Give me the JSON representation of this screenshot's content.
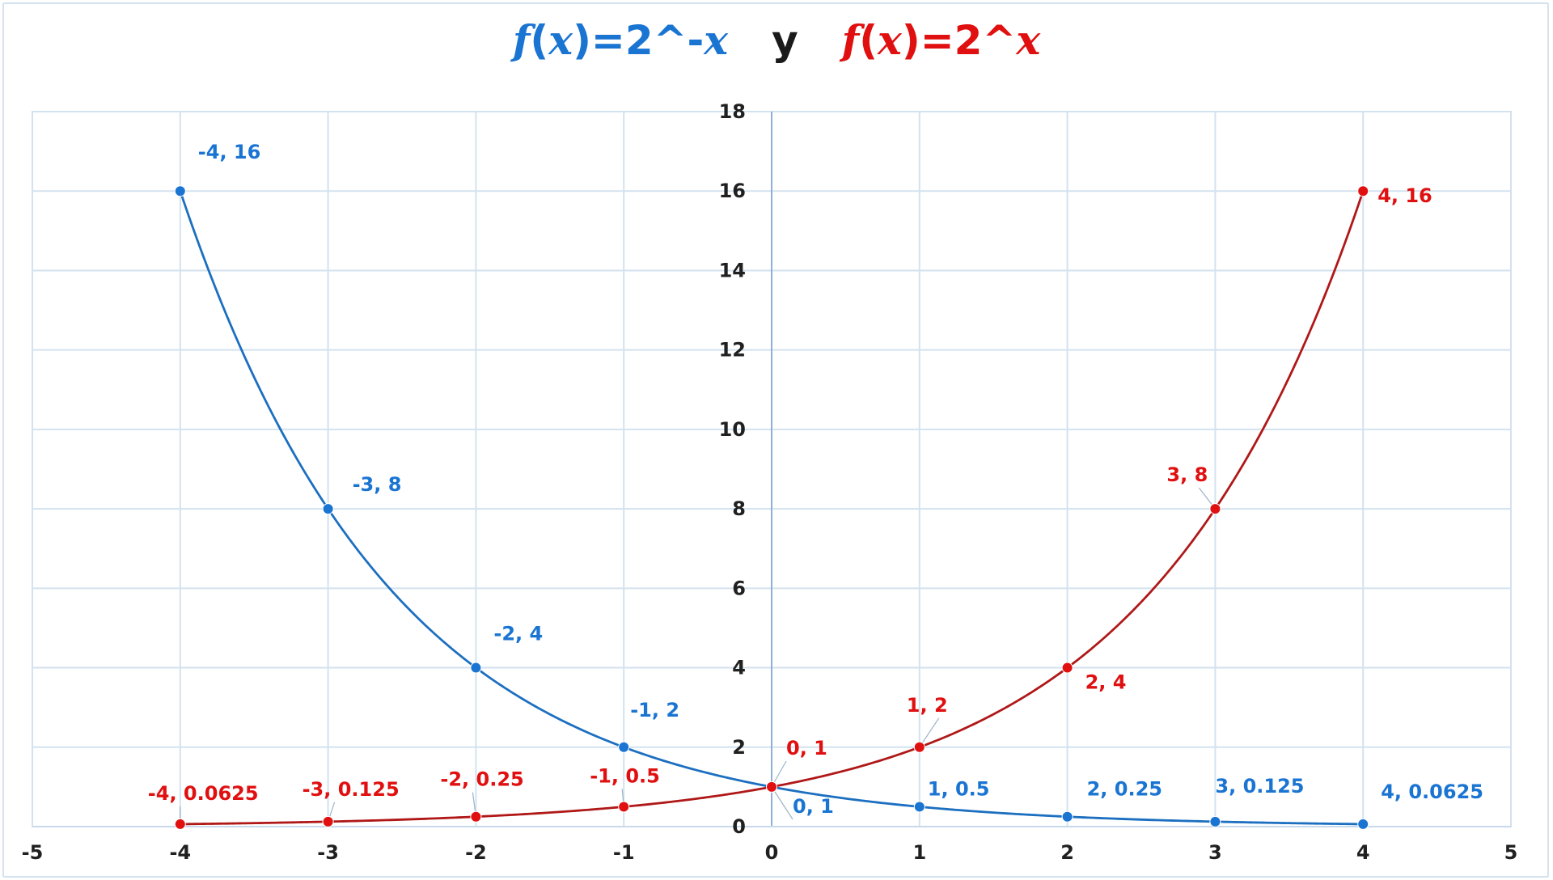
{
  "title": {
    "left": "f(x)=2^-x",
    "connector": "y",
    "right": "f(x)=2^x",
    "left_color": "#1a74d2",
    "right_color": "#e01010"
  },
  "chart_data": {
    "type": "scatter",
    "title": "f(x)=2^-x y f(x)=2^x",
    "xlim": [
      -5,
      5
    ],
    "ylim": [
      0,
      18
    ],
    "x_ticks": [
      -5,
      -4,
      -3,
      -2,
      -1,
      0,
      1,
      2,
      3,
      4,
      5
    ],
    "y_ticks": [
      0,
      2,
      4,
      6,
      8,
      10,
      12,
      14,
      16,
      18
    ],
    "grid": true,
    "smooth_lines": true,
    "series": [
      {
        "name": "f(x)=2^-x",
        "color": "#1c6fc0",
        "label_color": "#1a74d2",
        "x": [
          -4,
          -3,
          -2,
          -1,
          0,
          1,
          2,
          3,
          4
        ],
        "y": [
          16,
          8,
          4,
          2,
          1,
          0.5,
          0.25,
          0.125,
          0.0625
        ],
        "labels": [
          "-4, 16",
          "-3, 8",
          "-2, 4",
          "-1, 2",
          "0, 1",
          "1, 0.5",
          "2, 0.25",
          "3, 0.125",
          "4, 0.0625"
        ]
      },
      {
        "name": "f(x)=2^x",
        "color": "#b01818",
        "label_color": "#e01010",
        "x": [
          -4,
          -3,
          -2,
          -1,
          0,
          1,
          2,
          3,
          4
        ],
        "y": [
          0.0625,
          0.125,
          0.25,
          0.5,
          1,
          2,
          4,
          8,
          16
        ],
        "labels": [
          "-4, 0.0625",
          "-3, 0.125",
          "-2, 0.25",
          "-1, 0.5",
          "0, 1",
          "1, 2",
          "2, 4",
          "3, 8",
          "4, 16"
        ]
      }
    ]
  }
}
